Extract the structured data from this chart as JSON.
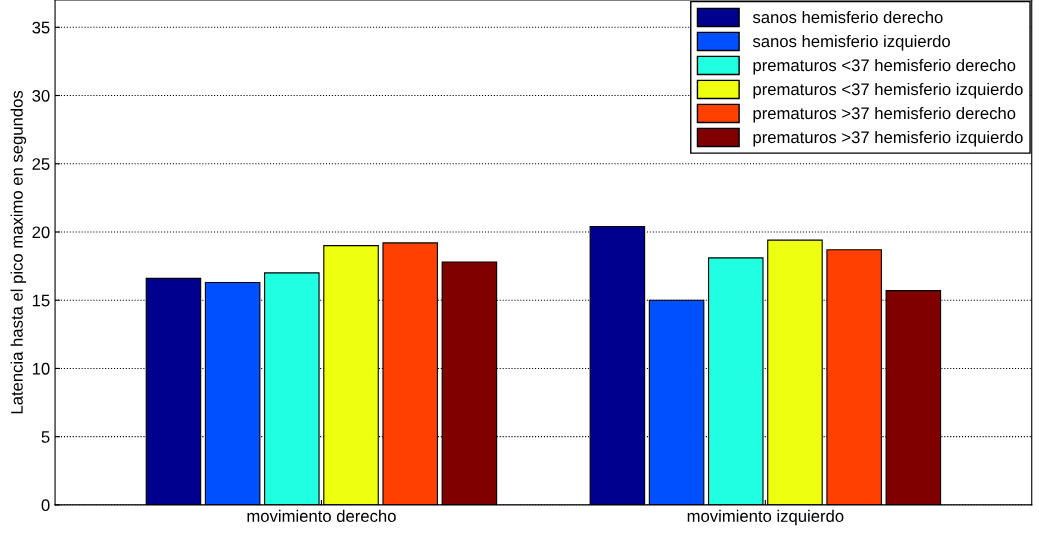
{
  "chart_data": {
    "type": "bar",
    "ylabel": "Latencia hasta el pico maximo en segundos",
    "categories": [
      "movimiento derecho",
      "movimiento izquierdo"
    ],
    "series": [
      {
        "name": "sanos hemisferio derecho",
        "color": "#00008f",
        "values": [
          16.6,
          20.4
        ]
      },
      {
        "name": "sanos hemisferio izquierdo",
        "color": "#0050ff",
        "values": [
          16.3,
          15.0
        ]
      },
      {
        "name": "prematuros <37 hemisferio derecho",
        "color": "#20ffdf",
        "values": [
          17.0,
          18.1
        ]
      },
      {
        "name": "prematuros <37 hemisferio izquierdo",
        "color": "#efff10",
        "values": [
          19.0,
          19.4
        ]
      },
      {
        "name": "prematuros >37 hemisferio derecho",
        "color": "#ff4000",
        "values": [
          19.2,
          18.7
        ]
      },
      {
        "name": "prematuros >37 hemisferio izquierdo",
        "color": "#800000",
        "values": [
          17.8,
          15.7
        ]
      }
    ],
    "ylim": [
      0,
      37
    ],
    "yticks": [
      0,
      5,
      10,
      15,
      20,
      25,
      30,
      35
    ],
    "grid": "y",
    "legend": "top right"
  }
}
